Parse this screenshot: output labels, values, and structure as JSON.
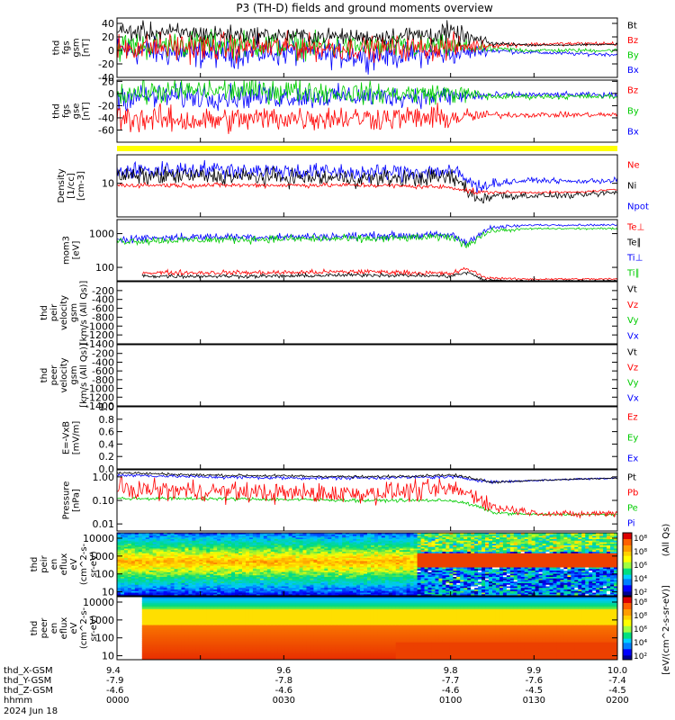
{
  "title": "P3 (TH-D) fields and ground moments overview",
  "colors": {
    "black": "#000000",
    "red": "#ff0000",
    "green": "#00cc00",
    "blue": "#0000ff",
    "yellow": "#ffff00"
  },
  "chart_data": [
    {
      "id": "fgs",
      "type": "line",
      "ylabel": [
        "thd",
        "fgs",
        "gsm",
        "[nT]"
      ],
      "ylim": [
        -40,
        48
      ],
      "yticks": [
        "40",
        "20",
        "0",
        "-20",
        "-40"
      ],
      "ytick_values": [
        40,
        20,
        0,
        -20,
        -40
      ],
      "legend": [
        {
          "name": "Bt",
          "color": "#000000"
        },
        {
          "name": "Bz",
          "color": "#ff0000"
        },
        {
          "name": "By",
          "color": "#00cc00"
        },
        {
          "name": "Bx",
          "color": "#0000ff"
        }
      ],
      "series": [
        {
          "name": "Bx",
          "color": "#0000ff",
          "x": [
            9.4,
            9.5,
            9.6,
            9.7,
            9.8,
            9.85,
            9.9,
            9.95,
            10.0
          ],
          "y": [
            0,
            -5,
            -3,
            -8,
            -5,
            0,
            -3,
            -5,
            -6
          ],
          "noise": [
            15,
            15,
            14,
            14,
            12,
            3,
            2,
            2,
            2
          ]
        },
        {
          "name": "By",
          "color": "#00cc00",
          "x": [
            9.4,
            9.5,
            9.6,
            9.7,
            9.8,
            9.85,
            9.9,
            9.95,
            10.0
          ],
          "y": [
            5,
            10,
            8,
            5,
            5,
            2,
            0,
            0,
            0
          ],
          "noise": [
            15,
            14,
            14,
            12,
            12,
            3,
            2,
            2,
            2
          ]
        },
        {
          "name": "Bz",
          "color": "#ff0000",
          "x": [
            9.4,
            9.5,
            9.6,
            9.7,
            9.8,
            9.85,
            9.9,
            9.95,
            10.0
          ],
          "y": [
            5,
            5,
            5,
            3,
            5,
            8,
            9,
            10,
            10
          ],
          "noise": [
            15,
            15,
            14,
            12,
            14,
            3,
            2,
            2,
            2
          ]
        },
        {
          "name": "Bt",
          "color": "#000000",
          "x": [
            9.4,
            9.5,
            9.6,
            9.7,
            9.8,
            9.85,
            9.9,
            9.95,
            10.0
          ],
          "y": [
            28,
            25,
            22,
            20,
            25,
            10,
            8,
            8,
            9
          ],
          "noise": [
            10,
            10,
            8,
            8,
            12,
            3,
            1,
            1,
            1
          ]
        }
      ]
    },
    {
      "id": "fgl",
      "type": "line",
      "ylabel": [
        "thd",
        "fgs",
        "gse",
        "[nT]"
      ],
      "ylim": [
        -80,
        22
      ],
      "yticks": [
        "20",
        "0",
        "-20",
        "-40",
        "-60"
      ],
      "ytick_values": [
        20,
        0,
        -20,
        -40,
        -60
      ],
      "legend": [
        {
          "name": "Bz",
          "color": "#ff0000"
        },
        {
          "name": "By",
          "color": "#00cc00"
        },
        {
          "name": "Bx",
          "color": "#0000ff"
        }
      ],
      "series": [
        {
          "name": "Bx",
          "color": "#0000ff",
          "x": [
            9.4,
            9.5,
            9.6,
            9.7,
            9.8,
            9.85,
            9.9,
            9.95,
            10.0
          ],
          "y": [
            -5,
            -5,
            -5,
            -5,
            -5,
            -3,
            -2,
            -2,
            -3
          ],
          "noise": [
            15,
            14,
            14,
            12,
            12,
            4,
            3,
            3,
            3
          ]
        },
        {
          "name": "By",
          "color": "#00cc00",
          "x": [
            9.4,
            9.5,
            9.6,
            9.7,
            9.8,
            9.85,
            9.9,
            9.95,
            10.0
          ],
          "y": [
            0,
            5,
            5,
            0,
            0,
            -5,
            -5,
            -5,
            -5
          ],
          "noise": [
            14,
            14,
            14,
            12,
            12,
            4,
            3,
            3,
            3
          ]
        },
        {
          "name": "Bz",
          "color": "#ff0000",
          "x": [
            9.4,
            9.5,
            9.6,
            9.7,
            9.8,
            9.85,
            9.9,
            9.95,
            10.0
          ],
          "y": [
            -40,
            -45,
            -40,
            -40,
            -40,
            -35,
            -35,
            -35,
            -35
          ],
          "noise": [
            16,
            15,
            15,
            14,
            14,
            4,
            3,
            3,
            3
          ]
        }
      ]
    },
    {
      "id": "density",
      "type": "line",
      "yscale": "log",
      "ylabel": [
        "Density",
        "[1/cc]",
        "[cm-3]"
      ],
      "ylim": [
        1.5,
        50
      ],
      "yticks": [
        "10"
      ],
      "ytick_values": [
        10
      ],
      "legend": [
        {
          "name": "Ne",
          "color": "#ff0000"
        },
        {
          "name": "Ni",
          "color": "#000000"
        },
        {
          "name": "Npot",
          "color": "#0000ff"
        }
      ],
      "series": [
        {
          "name": "Npot",
          "color": "#0000ff",
          "x": [
            9.4,
            9.5,
            9.6,
            9.7,
            9.8,
            9.83,
            9.85,
            9.9,
            9.95,
            10.0
          ],
          "y": [
            20,
            22,
            20,
            18,
            20,
            8,
            10,
            12,
            11,
            12
          ],
          "noise": [
            0.15,
            0.15,
            0.15,
            0.15,
            0.15,
            0.15,
            0.08,
            0.04,
            0.04,
            0.06
          ]
        },
        {
          "name": "Ni",
          "color": "#000000",
          "x": [
            9.4,
            9.5,
            9.6,
            9.7,
            9.8,
            9.83,
            9.85,
            9.9,
            9.95,
            10.0
          ],
          "y": [
            15,
            15,
            14,
            13,
            14,
            4,
            5,
            5,
            5,
            6
          ],
          "noise": [
            0.15,
            0.15,
            0.15,
            0.15,
            0.15,
            0.15,
            0.1,
            0.05,
            0.05,
            0.06
          ]
        },
        {
          "name": "Ne",
          "color": "#ff0000",
          "x": [
            9.4,
            9.5,
            9.6,
            9.7,
            9.8,
            9.83,
            9.85,
            9.9,
            9.95,
            10.0
          ],
          "y": [
            9,
            9,
            9,
            9,
            8,
            6,
            6,
            6,
            6,
            7
          ],
          "noise": [
            0.04,
            0.04,
            0.04,
            0.04,
            0.04,
            0.05,
            0.03,
            0.02,
            0.02,
            0.02
          ]
        }
      ]
    },
    {
      "id": "temp",
      "type": "line",
      "yscale": "log",
      "ylabel": [
        "mom3",
        "[eV]"
      ],
      "ylim": [
        40,
        2600
      ],
      "yticks": [
        "1000",
        "100"
      ],
      "ytick_values": [
        1000,
        100
      ],
      "legend": [
        {
          "name": "Te⊥",
          "color": "#ff0000"
        },
        {
          "name": "Te∥",
          "color": "#000000"
        },
        {
          "name": "Ti⊥",
          "color": "#0000ff"
        },
        {
          "name": "Ti∥",
          "color": "#00cc00"
        }
      ],
      "series": [
        {
          "name": "Ti⊥",
          "color": "#0000ff",
          "x": [
            9.4,
            9.5,
            9.6,
            9.7,
            9.8,
            9.82,
            9.85,
            9.9,
            9.95,
            10.0
          ],
          "y": [
            700,
            800,
            800,
            850,
            900,
            500,
            1500,
            1800,
            1800,
            1800
          ],
          "noise": [
            0.08,
            0.08,
            0.08,
            0.08,
            0.08,
            0.1,
            0.05,
            0.02,
            0.02,
            0.02
          ]
        },
        {
          "name": "Ti∥",
          "color": "#00cc00",
          "x": [
            9.4,
            9.5,
            9.6,
            9.7,
            9.8,
            9.82,
            9.85,
            9.9,
            9.95,
            10.0
          ],
          "y": [
            600,
            650,
            700,
            700,
            800,
            450,
            1200,
            1400,
            1400,
            1400
          ],
          "noise": [
            0.08,
            0.08,
            0.08,
            0.08,
            0.08,
            0.1,
            0.05,
            0.02,
            0.02,
            0.02
          ]
        },
        {
          "name": "Te⊥",
          "color": "#ff0000",
          "x": [
            9.43,
            9.5,
            9.6,
            9.7,
            9.8,
            9.82,
            9.84,
            9.88,
            9.95,
            10.0
          ],
          "y": [
            70,
            70,
            70,
            75,
            65,
            90,
            50,
            45,
            45,
            45
          ],
          "noise": [
            0.05,
            0.05,
            0.05,
            0.05,
            0.05,
            0.05,
            0.03,
            0.02,
            0.02,
            0.02
          ]
        },
        {
          "name": "Te∥",
          "color": "#000000",
          "x": [
            9.43,
            9.5,
            9.6,
            9.7,
            9.8,
            9.82,
            9.84,
            9.88,
            9.95,
            10.0
          ],
          "y": [
            55,
            55,
            55,
            60,
            55,
            70,
            42,
            40,
            40,
            40
          ],
          "noise": [
            0.04,
            0.04,
            0.04,
            0.04,
            0.04,
            0.04,
            0.03,
            0.02,
            0.02,
            0.02
          ]
        }
      ]
    },
    {
      "id": "vi",
      "type": "line",
      "ylabel": [
        "thd",
        "peir",
        "velocity",
        "gsm",
        "[km/s (All Qs)]"
      ],
      "ylim": [
        -1400,
        0
      ],
      "yticks": [
        "-200",
        "-400",
        "-600",
        "-800",
        "-1000",
        "-1200",
        "-1400"
      ],
      "ytick_values": [
        -200,
        -400,
        -600,
        -800,
        -1000,
        -1200,
        -1400
      ],
      "legend": [
        {
          "name": "Vt",
          "color": "#000000"
        },
        {
          "name": "Vz",
          "color": "#ff0000"
        },
        {
          "name": "Vy",
          "color": "#00cc00"
        },
        {
          "name": "Vx",
          "color": "#0000ff"
        }
      ],
      "series": []
    },
    {
      "id": "ve",
      "type": "line",
      "ylabel": [
        "thd",
        "peer",
        "velocity",
        "gsm",
        "[km/s (All Qs)]"
      ],
      "ylim": [
        -1400,
        0
      ],
      "yticks": [
        "-200",
        "-400",
        "-600",
        "-800",
        "-1000",
        "-1200",
        "-1400"
      ],
      "ytick_values": [
        -200,
        -400,
        -600,
        -800,
        -1000,
        -1200,
        -1400
      ],
      "legend": [
        {
          "name": "Vt",
          "color": "#000000"
        },
        {
          "name": "Vz",
          "color": "#ff0000"
        },
        {
          "name": "Vy",
          "color": "#00cc00"
        },
        {
          "name": "Vx",
          "color": "#0000ff"
        }
      ],
      "series": []
    },
    {
      "id": "efield",
      "type": "line",
      "ylabel": [
        "E=-VxB",
        "[mV/m]"
      ],
      "ylim": [
        0,
        1
      ],
      "yticks": [
        "1.0",
        "0.8",
        "0.6",
        "0.4",
        "0.2",
        "0.0"
      ],
      "ytick_values": [
        1.0,
        0.8,
        0.6,
        0.4,
        0.2,
        0.0
      ],
      "legend": [
        {
          "name": "Ez",
          "color": "#ff0000"
        },
        {
          "name": "Ey",
          "color": "#00cc00"
        },
        {
          "name": "Ex",
          "color": "#0000ff"
        }
      ],
      "series": []
    },
    {
      "id": "pressure",
      "type": "line",
      "yscale": "log",
      "ylabel": [
        "Pressure",
        "[nPa]"
      ],
      "ylim": [
        0.005,
        2
      ],
      "yticks": [
        "1.00",
        "0.10",
        "0.01"
      ],
      "ytick_values": [
        1.0,
        0.1,
        0.01
      ],
      "legend": [
        {
          "name": "Pt",
          "color": "#000000"
        },
        {
          "name": "Pb",
          "color": "#ff0000"
        },
        {
          "name": "Pe",
          "color": "#00cc00"
        },
        {
          "name": "Pi",
          "color": "#0000ff"
        }
      ],
      "series": [
        {
          "name": "Pe",
          "color": "#00cc00",
          "x": [
            9.4,
            9.5,
            9.6,
            9.7,
            9.8,
            9.85,
            9.9,
            9.95,
            10.0
          ],
          "y": [
            0.12,
            0.12,
            0.11,
            0.1,
            0.1,
            0.03,
            0.025,
            0.025,
            0.025
          ],
          "noise": [
            0.05,
            0.05,
            0.05,
            0.05,
            0.05,
            0.05,
            0.03,
            0.03,
            0.03
          ]
        },
        {
          "name": "Pb",
          "color": "#ff0000",
          "x": [
            9.4,
            9.5,
            9.6,
            9.7,
            9.8,
            9.85,
            9.9,
            9.95,
            10.0
          ],
          "y": [
            0.3,
            0.25,
            0.2,
            0.2,
            0.3,
            0.05,
            0.03,
            0.025,
            0.03
          ],
          "noise": [
            0.3,
            0.3,
            0.3,
            0.3,
            0.3,
            0.2,
            0.1,
            0.1,
            0.12
          ]
        },
        {
          "name": "Pi",
          "color": "#0000ff",
          "x": [
            9.4,
            9.5,
            9.6,
            9.7,
            9.8,
            9.85,
            9.9,
            9.95,
            10.0
          ],
          "y": [
            1.2,
            1.0,
            0.9,
            0.9,
            1.0,
            0.6,
            0.7,
            0.8,
            0.9
          ],
          "noise": [
            0.05,
            0.05,
            0.05,
            0.05,
            0.05,
            0.05,
            0.03,
            0.03,
            0.03
          ]
        },
        {
          "name": "Pt",
          "color": "#000000",
          "x": [
            9.4,
            9.5,
            9.6,
            9.7,
            9.8,
            9.85,
            9.9,
            9.95,
            10.0
          ],
          "y": [
            1.5,
            1.2,
            1.1,
            1.0,
            1.2,
            0.6,
            0.7,
            0.8,
            0.9
          ],
          "noise": [
            0.04,
            0.04,
            0.04,
            0.04,
            0.04,
            0.04,
            0.02,
            0.02,
            0.02
          ]
        }
      ]
    },
    {
      "id": "peir_spec",
      "type": "heatmap",
      "yscale": "log",
      "ylabel": [
        "thd",
        "peir",
        "en",
        "eflux",
        "eV",
        "(cm^2-s-",
        "sr-eV)"
      ],
      "ylim": [
        6,
        20000
      ],
      "yticks": [
        "10000",
        "1000",
        "100",
        "10"
      ],
      "ytick_values": [
        10000,
        1000,
        100,
        10
      ]
    },
    {
      "id": "peer_spec",
      "type": "heatmap",
      "yscale": "log",
      "ylabel": [
        "thd",
        "peer",
        "en",
        "eflux",
        "eV",
        "(cm^2-s-",
        "sr-eV)"
      ],
      "ylim": [
        6,
        20000
      ],
      "yticks": [
        "10000",
        "1000",
        "100",
        "10"
      ],
      "ytick_values": [
        10000,
        1000,
        100,
        10
      ]
    }
  ],
  "colorbar": {
    "ticks": [
      "10⁸",
      "10⁸",
      "10⁶",
      "10⁴",
      "10²"
    ],
    "label": "[eV/(cm^2-s-sr-eV)]",
    "label2": "(All Qs)"
  },
  "xaxis": {
    "range": [
      9.4,
      10.0
    ],
    "tick_values": [
      9.4,
      9.6,
      9.8,
      10.0
    ],
    "minor_values": [
      9.5,
      9.9
    ],
    "rows": [
      {
        "label": "thd_X-GSM",
        "values": [
          "9.4",
          "9.6",
          "9.8",
          "9.9",
          "10.0"
        ]
      },
      {
        "label": "thd_Y-GSM",
        "values": [
          "-7.9",
          "-7.8",
          "-7.7",
          "-7.6",
          "-7.4"
        ]
      },
      {
        "label": "thd_Z-GSM",
        "values": [
          "-4.6",
          "-4.6",
          "-4.6",
          "-4.5",
          "-4.5"
        ]
      },
      {
        "label": "hhmm",
        "values": [
          "0000",
          "0030",
          "0100",
          "0130",
          "0200"
        ]
      }
    ],
    "date": "2024 Jun 18"
  }
}
